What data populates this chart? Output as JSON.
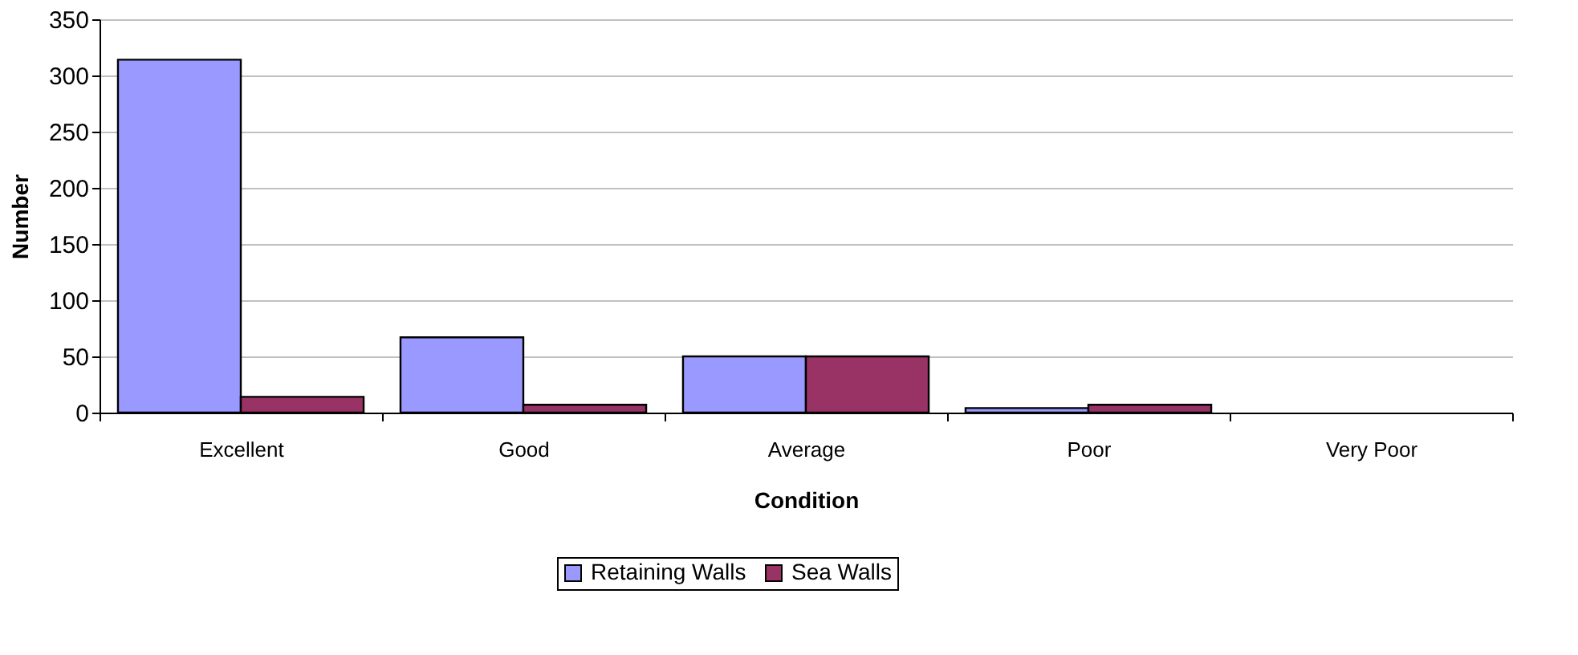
{
  "chart_data": {
    "type": "bar",
    "xlabel": "Condition",
    "ylabel": "Number",
    "categories": [
      "Excellent",
      "Good",
      "Average",
      "Poor",
      "Very Poor"
    ],
    "series": [
      {
        "name": "Retaining Walls",
        "color": "#9999ff",
        "values": [
          314,
          67,
          50,
          4,
          0
        ]
      },
      {
        "name": "Sea Walls",
        "color": "#993366",
        "values": [
          14,
          7,
          50,
          7,
          0
        ]
      }
    ],
    "ylim": [
      0,
      350
    ],
    "yticks": [
      0,
      50,
      100,
      150,
      200,
      250,
      300,
      350
    ],
    "grid": "y",
    "legend": "bottom"
  }
}
